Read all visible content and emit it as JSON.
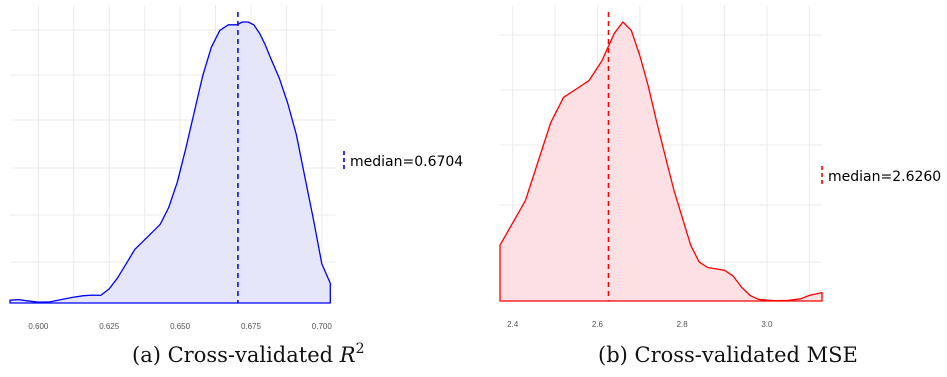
{
  "chart_data": [
    {
      "type": "area",
      "chart_kind": "density",
      "caption_prefix": "(a) Cross-validated ",
      "caption_symbol": "R",
      "caption_sup": "2",
      "x_ticks": [
        "0.600",
        "0.625",
        "0.650",
        "0.675",
        "0.700"
      ],
      "x_tick_values": [
        0.6,
        0.625,
        0.65,
        0.675,
        0.7
      ],
      "xlim": [
        0.59,
        0.705
      ],
      "ylim": [
        0,
        1
      ],
      "grid": true,
      "color": "#0000ff",
      "fill": "#e6e6fb",
      "median_value": 0.6704,
      "legend_text": "median=0.6704",
      "legend_position": "right",
      "density": {
        "x": [
          0.59,
          0.593,
          0.596,
          0.6,
          0.604,
          0.608,
          0.612,
          0.616,
          0.619,
          0.622,
          0.625,
          0.628,
          0.631,
          0.634,
          0.637,
          0.64,
          0.643,
          0.646,
          0.649,
          0.652,
          0.655,
          0.658,
          0.661,
          0.664,
          0.667,
          0.67,
          0.672,
          0.674,
          0.676,
          0.678,
          0.68,
          0.682,
          0.685,
          0.688,
          0.691,
          0.694,
          0.697,
          0.7,
          0.703
        ],
        "y": [
          0.01,
          0.012,
          0.008,
          0.003,
          0.004,
          0.012,
          0.02,
          0.026,
          0.028,
          0.027,
          0.05,
          0.09,
          0.14,
          0.19,
          0.22,
          0.25,
          0.28,
          0.34,
          0.43,
          0.55,
          0.68,
          0.81,
          0.91,
          0.97,
          0.99,
          0.99,
          1.0,
          1.0,
          0.99,
          0.96,
          0.92,
          0.87,
          0.8,
          0.71,
          0.6,
          0.45,
          0.3,
          0.14,
          0.07
        ]
      }
    },
    {
      "type": "area",
      "chart_kind": "density",
      "caption_prefix": "(b) Cross-validated MSE",
      "x_ticks": [
        "2.4",
        "2.6",
        "2.8",
        "3.0"
      ],
      "x_tick_values": [
        2.4,
        2.6,
        2.8,
        3.0
      ],
      "xlim": [
        2.37,
        3.13
      ],
      "ylim": [
        0,
        1
      ],
      "grid": true,
      "color": "#ff0000",
      "fill": "#fde0e3",
      "median_value": 2.626,
      "legend_text": "median=2.6260",
      "legend_position": "right",
      "density": {
        "x": [
          2.37,
          2.4,
          2.43,
          2.46,
          2.49,
          2.52,
          2.55,
          2.58,
          2.61,
          2.64,
          2.66,
          2.68,
          2.7,
          2.72,
          2.74,
          2.76,
          2.78,
          2.8,
          2.82,
          2.84,
          2.86,
          2.88,
          2.9,
          2.92,
          2.94,
          2.96,
          2.98,
          3.0,
          3.02,
          3.05,
          3.08,
          3.1,
          3.13
        ],
        "y": [
          0.2,
          0.28,
          0.36,
          0.5,
          0.64,
          0.73,
          0.76,
          0.79,
          0.86,
          0.96,
          1.0,
          0.97,
          0.88,
          0.77,
          0.64,
          0.52,
          0.4,
          0.3,
          0.2,
          0.14,
          0.12,
          0.115,
          0.11,
          0.09,
          0.05,
          0.02,
          0.006,
          0.003,
          0.001,
          0.002,
          0.008,
          0.02,
          0.03
        ]
      }
    }
  ]
}
